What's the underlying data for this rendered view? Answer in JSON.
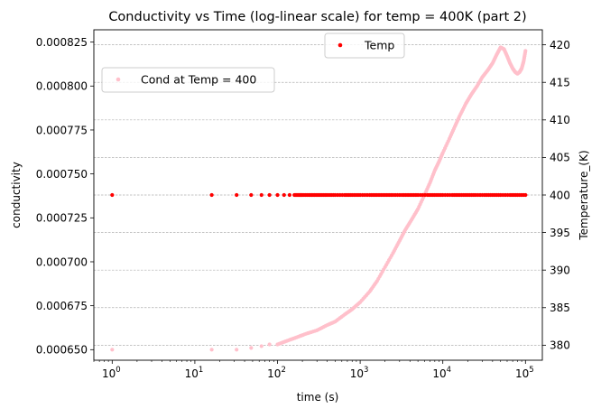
{
  "chart_data": {
    "type": "scatter",
    "title": "Conductivity vs Time (log-linear scale) for temp = 400K (part 2)",
    "xlabel": "time (s)",
    "ylabel_left": "conductivity",
    "ylabel_right": "Temperature_(K)",
    "x_scale": "log",
    "xlim": [
      0.6,
      160000
    ],
    "ylim_left": [
      0.000644,
      0.000832
    ],
    "ylim_right": [
      378.0,
      422.0
    ],
    "grid": "horizontal dashed (right axis)",
    "x_ticks": [
      {
        "value": 1,
        "base": "10",
        "exp": "0"
      },
      {
        "value": 10,
        "base": "10",
        "exp": "1"
      },
      {
        "value": 100,
        "base": "10",
        "exp": "2"
      },
      {
        "value": 1000,
        "base": "10",
        "exp": "3"
      },
      {
        "value": 10000,
        "base": "10",
        "exp": "4"
      },
      {
        "value": 100000,
        "base": "10",
        "exp": "5"
      }
    ],
    "y_left_ticks": [
      {
        "value": 0.00065,
        "label": "0.000650"
      },
      {
        "value": 0.000675,
        "label": "0.000675"
      },
      {
        "value": 0.0007,
        "label": "0.000700"
      },
      {
        "value": 0.000725,
        "label": "0.000725"
      },
      {
        "value": 0.00075,
        "label": "0.000750"
      },
      {
        "value": 0.000775,
        "label": "0.000775"
      },
      {
        "value": 0.0008,
        "label": "0.000800"
      },
      {
        "value": 0.000825,
        "label": "0.000825"
      }
    ],
    "y_right_ticks": [
      {
        "value": 380,
        "label": "380"
      },
      {
        "value": 385,
        "label": "385"
      },
      {
        "value": 390,
        "label": "390"
      },
      {
        "value": 395,
        "label": "395"
      },
      {
        "value": 400,
        "label": "400"
      },
      {
        "value": 405,
        "label": "405"
      },
      {
        "value": 410,
        "label": "410"
      },
      {
        "value": 415,
        "label": "415"
      },
      {
        "value": 420,
        "label": "420"
      }
    ],
    "series": [
      {
        "name": "Cond at Temp = 400",
        "axis": "left",
        "color": "#ffc0cb",
        "points": [
          [
            1,
            0.00065
          ],
          [
            16,
            0.00065
          ],
          [
            32,
            0.00065
          ],
          [
            48,
            0.000651
          ],
          [
            64,
            0.000652
          ],
          [
            80,
            0.000653
          ],
          [
            100,
            0.000653
          ],
          [
            130,
            0.000655
          ],
          [
            170,
            0.000657
          ],
          [
            220,
            0.000659
          ],
          [
            300,
            0.000661
          ],
          [
            400,
            0.000664
          ],
          [
            500,
            0.000666
          ],
          [
            650,
            0.00067
          ],
          [
            800,
            0.000673
          ],
          [
            1000,
            0.000677
          ],
          [
            1300,
            0.000683
          ],
          [
            1600,
            0.000689
          ],
          [
            2000,
            0.000697
          ],
          [
            2500,
            0.000705
          ],
          [
            3000,
            0.000712
          ],
          [
            3500,
            0.000718
          ],
          [
            4200,
            0.000724
          ],
          [
            5000,
            0.00073
          ],
          [
            6000,
            0.000738
          ],
          [
            7000,
            0.000745
          ],
          [
            8000,
            0.000752
          ],
          [
            9000,
            0.000757
          ],
          [
            10000,
            0.000762
          ],
          [
            12000,
            0.00077
          ],
          [
            14000,
            0.000777
          ],
          [
            16000,
            0.000783
          ],
          [
            19000,
            0.00079
          ],
          [
            22000,
            0.000795
          ],
          [
            26000,
            0.0008
          ],
          [
            30000,
            0.000805
          ],
          [
            35000,
            0.000809
          ],
          [
            40000,
            0.000813
          ],
          [
            45000,
            0.000818
          ],
          [
            50000,
            0.000822
          ],
          [
            55000,
            0.000821
          ],
          [
            60000,
            0.000817
          ],
          [
            65000,
            0.000813
          ],
          [
            70000,
            0.00081
          ],
          [
            75000,
            0.000808
          ],
          [
            80000,
            0.000807
          ],
          [
            85000,
            0.000808
          ],
          [
            90000,
            0.00081
          ],
          [
            95000,
            0.000814
          ],
          [
            100000,
            0.00082
          ]
        ]
      },
      {
        "name": "Temp",
        "axis": "right",
        "color": "#ff0000",
        "points": [
          [
            1,
            400
          ],
          [
            16,
            400
          ],
          [
            32,
            400
          ],
          [
            48,
            400
          ],
          [
            64,
            400
          ],
          [
            80,
            400
          ],
          [
            100,
            400
          ],
          [
            120,
            400
          ],
          [
            140,
            400
          ],
          [
            160,
            400
          ],
          [
            180,
            400
          ],
          [
            200,
            400
          ],
          [
            240,
            400
          ],
          [
            280,
            400
          ],
          [
            330,
            400
          ],
          [
            400,
            400
          ],
          [
            500,
            400
          ],
          [
            650,
            400
          ],
          [
            800,
            400
          ],
          [
            1000,
            400
          ],
          [
            1300,
            400
          ],
          [
            1600,
            400
          ],
          [
            2000,
            400
          ],
          [
            2500,
            400
          ],
          [
            3200,
            400
          ],
          [
            4000,
            400
          ],
          [
            5000,
            400
          ],
          [
            6500,
            400
          ],
          [
            8000,
            400
          ],
          [
            10000,
            400
          ],
          [
            13000,
            400
          ],
          [
            16000,
            400
          ],
          [
            20000,
            400
          ],
          [
            25000,
            400
          ],
          [
            32000,
            400
          ],
          [
            40000,
            400
          ],
          [
            50000,
            400
          ],
          [
            65000,
            400
          ],
          [
            80000,
            400
          ],
          [
            100000,
            400
          ]
        ]
      }
    ],
    "legends": [
      {
        "series": "Temp",
        "placement": "top-center"
      },
      {
        "series": "Cond at Temp = 400",
        "placement": "upper-left"
      }
    ]
  }
}
